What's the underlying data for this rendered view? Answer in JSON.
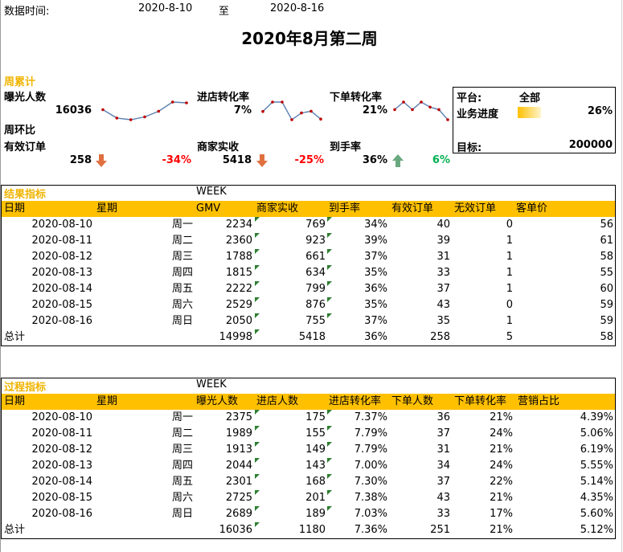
{
  "header": {
    "date_label": "数据时间:",
    "date_from": "2020-8-10",
    "to_label": "至",
    "date_to": "2020-8-16",
    "title": "2020年8月第二周"
  },
  "weekly": {
    "section_label": "周累计",
    "exposure_label": "曝光人数",
    "exposure_value": "16036",
    "store_conv_label": "进店转化率",
    "store_conv_value": "7%",
    "order_conv_label": "下单转化率",
    "order_conv_value": "21%",
    "wow_label": "周环比",
    "valid_orders_label": "有效订单",
    "valid_orders_value": "258",
    "valid_orders_change": "-34%",
    "revenue_label": "商家实收",
    "revenue_value": "5418",
    "revenue_change": "-25%",
    "arrival_label": "到手率",
    "arrival_value": "36%",
    "arrival_change": "6%",
    "arrow_icons": [
      "arrow-down-icon",
      "arrow-down-icon",
      "arrow-up-icon"
    ],
    "colors": {
      "down": "#e07040",
      "up": "#6aa880",
      "negative": "#ff0000",
      "positive": "#00b050"
    }
  },
  "sparklines": {
    "exposure": [
      2375,
      1989,
      1913,
      2044,
      2301,
      2725,
      2689
    ],
    "store_conv": [
      7.37,
      7.79,
      7.79,
      7.0,
      7.3,
      7.38,
      7.03
    ],
    "order_conv": [
      21,
      24,
      21,
      24,
      22,
      21,
      17
    ],
    "line_color": "#5b7fb0",
    "marker_color": "#c00000"
  },
  "summary_box": {
    "platform_label": "平台:",
    "platform_value": "全部",
    "progress_label": "业务进度",
    "progress_value": "26%",
    "progress_fraction": 0.26,
    "target_label": "目标:",
    "target_value": "200000"
  },
  "result_table": {
    "section_label": "结果指标",
    "week_label": "WEEK",
    "columns": [
      "日期",
      "星期",
      "GMV",
      "商家实收",
      "到手率",
      "有效订单",
      "无效订单",
      "客单价"
    ],
    "rows": [
      [
        "2020-08-10",
        "周一",
        "2234",
        "769",
        "34%",
        "40",
        "0",
        "56"
      ],
      [
        "2020-08-11",
        "周二",
        "2360",
        "923",
        "39%",
        "39",
        "1",
        "61"
      ],
      [
        "2020-08-12",
        "周三",
        "1788",
        "661",
        "37%",
        "31",
        "1",
        "58"
      ],
      [
        "2020-08-13",
        "周四",
        "1815",
        "634",
        "35%",
        "33",
        "1",
        "55"
      ],
      [
        "2020-08-14",
        "周五",
        "2222",
        "799",
        "36%",
        "37",
        "1",
        "60"
      ],
      [
        "2020-08-15",
        "周六",
        "2529",
        "876",
        "35%",
        "43",
        "0",
        "59"
      ],
      [
        "2020-08-16",
        "周日",
        "2050",
        "755",
        "37%",
        "35",
        "1",
        "59"
      ]
    ],
    "total": [
      "总计",
      "",
      "14998",
      "5418",
      "36%",
      "258",
      "5",
      "58"
    ]
  },
  "process_table": {
    "section_label": "过程指标",
    "week_label": "WEEK",
    "columns": [
      "日期",
      "星期",
      "曝光人数",
      "进店人数",
      "进店转化率",
      "下单人数",
      "下单转化率",
      "营销占比"
    ],
    "rows": [
      [
        "2020-08-10",
        "周一",
        "2375",
        "175",
        "7.37%",
        "36",
        "21%",
        "4.39%"
      ],
      [
        "2020-08-11",
        "周二",
        "1989",
        "155",
        "7.79%",
        "37",
        "24%",
        "5.06%"
      ],
      [
        "2020-08-12",
        "周三",
        "1913",
        "149",
        "7.79%",
        "31",
        "21%",
        "6.19%"
      ],
      [
        "2020-08-13",
        "周四",
        "2044",
        "143",
        "7.00%",
        "34",
        "24%",
        "5.55%"
      ],
      [
        "2020-08-14",
        "周五",
        "2301",
        "168",
        "7.30%",
        "37",
        "22%",
        "5.14%"
      ],
      [
        "2020-08-15",
        "周六",
        "2725",
        "201",
        "7.38%",
        "43",
        "21%",
        "4.35%"
      ],
      [
        "2020-08-16",
        "周日",
        "2689",
        "189",
        "7.03%",
        "33",
        "17%",
        "5.60%"
      ]
    ],
    "total": [
      "总计",
      "",
      "16036",
      "1180",
      "7.36%",
      "251",
      "21%",
      "5.12%"
    ]
  }
}
